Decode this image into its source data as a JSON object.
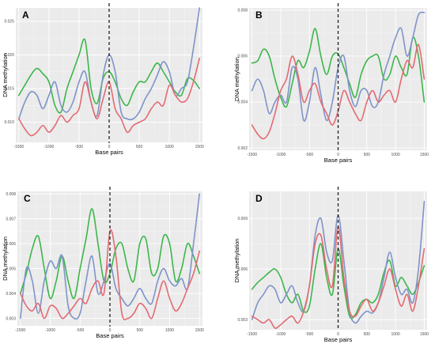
{
  "chart_data": [
    {
      "type": "line",
      "panel_label": "A",
      "xlabel": "Base pairs",
      "ylabel": "DNA methylation",
      "xlim": [
        -1550,
        1550
      ],
      "ylim": [
        0.007,
        0.027
      ],
      "x_ticks": [
        -1500,
        -1000,
        -500,
        0,
        500,
        1000,
        1500
      ],
      "x_tick_labels": [
        "-1500",
        "-1000",
        "-500",
        "0",
        "500",
        "1000",
        "1500"
      ],
      "y_ticks": [
        0.01,
        0.015,
        0.02,
        0.025
      ],
      "y_tick_labels": [
        "0.010",
        "0.015",
        "0.020",
        "0.025"
      ],
      "vline_x": 0,
      "series": [
        {
          "color": "#3cb64a",
          "x": [
            -1500,
            -1400,
            -1300,
            -1200,
            -1100,
            -1000,
            -900,
            -800,
            -700,
            -600,
            -500,
            -400,
            -300,
            -200,
            -100,
            0,
            100,
            200,
            300,
            400,
            500,
            600,
            700,
            800,
            900,
            1000,
            1100,
            1200,
            1300,
            1400,
            1500
          ],
          "values": [
            0.014,
            0.0155,
            0.017,
            0.018,
            0.0172,
            0.016,
            0.0125,
            0.0115,
            0.015,
            0.0175,
            0.02,
            0.0222,
            0.015,
            0.0128,
            0.0165,
            0.0175,
            0.016,
            0.0135,
            0.0125,
            0.0145,
            0.016,
            0.016,
            0.0175,
            0.0188,
            0.0175,
            0.016,
            0.0145,
            0.014,
            0.0165,
            0.0162,
            0.015
          ]
        },
        {
          "color": "#7e93c9",
          "x": [
            -1500,
            -1400,
            -1300,
            -1200,
            -1100,
            -1000,
            -900,
            -800,
            -700,
            -600,
            -500,
            -400,
            -300,
            -200,
            -100,
            0,
            100,
            200,
            300,
            400,
            500,
            600,
            700,
            800,
            900,
            1000,
            1100,
            1200,
            1300,
            1400,
            1500
          ],
          "values": [
            0.0105,
            0.013,
            0.0145,
            0.014,
            0.012,
            0.014,
            0.016,
            0.0125,
            0.0115,
            0.013,
            0.016,
            0.0175,
            0.013,
            0.011,
            0.017,
            0.02,
            0.0175,
            0.0115,
            0.0105,
            0.0105,
            0.0115,
            0.0135,
            0.015,
            0.017,
            0.019,
            0.0175,
            0.014,
            0.015,
            0.016,
            0.021,
            0.027
          ]
        },
        {
          "color": "#e46a72",
          "x": [
            -1500,
            -1400,
            -1300,
            -1200,
            -1100,
            -1000,
            -900,
            -800,
            -700,
            -600,
            -500,
            -400,
            -300,
            -200,
            -100,
            0,
            100,
            200,
            300,
            400,
            500,
            600,
            700,
            800,
            900,
            1000,
            1100,
            1200,
            1300,
            1400,
            1500
          ],
          "values": [
            0.0105,
            0.009,
            0.008,
            0.0085,
            0.0095,
            0.0085,
            0.0095,
            0.011,
            0.01,
            0.011,
            0.012,
            0.016,
            0.013,
            0.0105,
            0.0135,
            0.016,
            0.012,
            0.0105,
            0.0085,
            0.0095,
            0.01,
            0.0105,
            0.012,
            0.013,
            0.0125,
            0.0155,
            0.014,
            0.013,
            0.0135,
            0.016,
            0.0195
          ]
        }
      ]
    },
    {
      "type": "line",
      "panel_label": "B",
      "xlabel": "Base pairs",
      "ylabel": "DNA methylation",
      "xlim": [
        -1550,
        1550
      ],
      "ylim": [
        0.0019,
        0.0081
      ],
      "x_ticks": [
        -1500,
        -1000,
        -500,
        0,
        500,
        1000,
        1500
      ],
      "x_tick_labels": [
        "-1500",
        "-1000",
        "-500",
        "0",
        "500",
        "1000",
        "1500"
      ],
      "y_ticks": [
        0.002,
        0.004,
        0.006,
        0.008
      ],
      "y_tick_labels": [
        "0.002",
        "0.004",
        "0.006",
        "0.008"
      ],
      "vline_x": 0,
      "series": [
        {
          "color": "#3cb64a",
          "x": [
            -1500,
            -1400,
            -1300,
            -1200,
            -1100,
            -1000,
            -900,
            -800,
            -700,
            -600,
            -500,
            -400,
            -300,
            -200,
            -100,
            0,
            100,
            200,
            300,
            400,
            500,
            600,
            700,
            800,
            900,
            1000,
            1100,
            1200,
            1300,
            1400,
            1500
          ],
          "values": [
            0.0057,
            0.0058,
            0.0063,
            0.006,
            0.005,
            0.0042,
            0.0038,
            0.0048,
            0.0058,
            0.0055,
            0.0062,
            0.0072,
            0.006,
            0.0052,
            0.006,
            0.0061,
            0.0055,
            0.0048,
            0.0042,
            0.0052,
            0.0058,
            0.006,
            0.006,
            0.005,
            0.0052,
            0.006,
            0.0055,
            0.0052,
            0.0068,
            0.006,
            0.004
          ]
        },
        {
          "color": "#7e93c9",
          "x": [
            -1500,
            -1400,
            -1300,
            -1200,
            -1100,
            -1000,
            -900,
            -800,
            -700,
            -600,
            -500,
            -400,
            -300,
            -200,
            -100,
            0,
            100,
            200,
            300,
            400,
            500,
            600,
            700,
            800,
            900,
            1000,
            1100,
            1200,
            1300,
            1400,
            1500
          ],
          "values": [
            0.0045,
            0.005,
            0.0045,
            0.0035,
            0.004,
            0.0043,
            0.004,
            0.0055,
            0.005,
            0.0032,
            0.004,
            0.0055,
            0.0043,
            0.0032,
            0.004,
            0.0055,
            0.006,
            0.0045,
            0.0038,
            0.0045,
            0.0045,
            0.0038,
            0.004,
            0.0052,
            0.006,
            0.0068,
            0.0072,
            0.006,
            0.0068,
            0.0078,
            0.0079
          ]
        },
        {
          "color": "#e46a72",
          "x": [
            -1500,
            -1400,
            -1300,
            -1200,
            -1100,
            -1000,
            -900,
            -800,
            -700,
            -600,
            -500,
            -400,
            -300,
            -200,
            -100,
            0,
            100,
            200,
            300,
            400,
            500,
            600,
            700,
            800,
            900,
            1000,
            1100,
            1200,
            1300,
            1400,
            1500
          ],
          "values": [
            0.003,
            0.0026,
            0.0024,
            0.0027,
            0.0035,
            0.0045,
            0.005,
            0.006,
            0.0052,
            0.004,
            0.0045,
            0.0048,
            0.004,
            0.0035,
            0.003,
            0.0036,
            0.0045,
            0.004,
            0.0035,
            0.0032,
            0.004,
            0.0045,
            0.004,
            0.0043,
            0.0045,
            0.004,
            0.005,
            0.0058,
            0.0055,
            0.0065,
            0.005
          ]
        }
      ]
    },
    {
      "type": "line",
      "panel_label": "C",
      "xlabel": "Base pairs",
      "ylabel": "DNA methylation",
      "xlim": [
        -1550,
        1550
      ],
      "ylim": [
        0.0027,
        0.0081
      ],
      "x_ticks": [
        -1500,
        -1000,
        -500,
        0,
        500,
        1000,
        1500
      ],
      "x_tick_labels": [
        "-1500",
        "-1000",
        "-500",
        "0",
        "500",
        "1000",
        "1500"
      ],
      "y_ticks": [
        0.003,
        0.004,
        0.005,
        0.006,
        0.007,
        0.008
      ],
      "y_tick_labels": [
        "0.003",
        "0.004",
        "0.005",
        "0.006",
        "0.007",
        "0.008"
      ],
      "vline_x": 0,
      "series": [
        {
          "color": "#3cb64a",
          "x": [
            -1500,
            -1400,
            -1300,
            -1200,
            -1100,
            -1000,
            -900,
            -800,
            -700,
            -600,
            -500,
            -400,
            -300,
            -200,
            -100,
            0,
            100,
            200,
            300,
            400,
            500,
            600,
            700,
            800,
            900,
            1000,
            1100,
            1200,
            1300,
            1400,
            1500
          ],
          "values": [
            0.004,
            0.0048,
            0.0058,
            0.0063,
            0.005,
            0.0038,
            0.0045,
            0.0055,
            0.0045,
            0.0038,
            0.005,
            0.0062,
            0.0074,
            0.006,
            0.0045,
            0.0048,
            0.0058,
            0.006,
            0.005,
            0.0045,
            0.006,
            0.0062,
            0.0048,
            0.005,
            0.0063,
            0.006,
            0.0045,
            0.005,
            0.006,
            0.0055,
            0.0048
          ]
        },
        {
          "color": "#7e93c9",
          "x": [
            -1500,
            -1400,
            -1300,
            -1200,
            -1100,
            -1000,
            -900,
            -800,
            -700,
            -600,
            -500,
            -400,
            -300,
            -200,
            -100,
            0,
            100,
            200,
            300,
            400,
            500,
            600,
            700,
            800,
            900,
            1000,
            1100,
            1200,
            1300,
            1400,
            1500
          ],
          "values": [
            0.003,
            0.005,
            0.0045,
            0.0032,
            0.0045,
            0.0053,
            0.005,
            0.0055,
            0.0035,
            0.003,
            0.0032,
            0.0045,
            0.0055,
            0.004,
            0.0045,
            0.0052,
            0.0042,
            0.0038,
            0.0035,
            0.0038,
            0.0042,
            0.0038,
            0.0036,
            0.0045,
            0.005,
            0.0045,
            0.0043,
            0.0046,
            0.0042,
            0.006,
            0.008
          ]
        },
        {
          "color": "#e46a72",
          "x": [
            -1500,
            -1400,
            -1300,
            -1200,
            -1100,
            -1000,
            -900,
            -800,
            -700,
            -600,
            -500,
            -400,
            -300,
            -200,
            -100,
            0,
            100,
            200,
            300,
            400,
            500,
            600,
            700,
            800,
            900,
            1000,
            1100,
            1200,
            1300,
            1400,
            1500
          ],
          "values": [
            0.004,
            0.0035,
            0.0033,
            0.0036,
            0.003,
            0.0035,
            0.0034,
            0.003,
            0.0032,
            0.0035,
            0.0038,
            0.0036,
            0.0042,
            0.0045,
            0.004,
            0.0065,
            0.0055,
            0.0032,
            0.003,
            0.0032,
            0.0036,
            0.0034,
            0.003,
            0.0038,
            0.0045,
            0.0038,
            0.0033,
            0.0036,
            0.0042,
            0.0048,
            0.0057
          ]
        }
      ]
    },
    {
      "type": "line",
      "panel_label": "D",
      "xlabel": "Base pairs",
      "ylabel": "DNA methylation",
      "xlim": [
        -1550,
        1550
      ],
      "ylim": [
        0.0024,
        0.0106
      ],
      "x_ticks": [
        -1500,
        -1000,
        -500,
        0,
        500,
        1000,
        1500
      ],
      "x_tick_labels": [
        "-1500",
        "-1000",
        "-500",
        "0",
        "500",
        "1000",
        "1500"
      ],
      "y_ticks": [
        0.003,
        0.006,
        0.009
      ],
      "y_tick_labels": [
        "0.003",
        "0.006",
        "0.009"
      ],
      "vline_x": 0,
      "series": [
        {
          "color": "#3cb64a",
          "x": [
            -1500,
            -1400,
            -1300,
            -1200,
            -1100,
            -1000,
            -900,
            -800,
            -700,
            -600,
            -500,
            -400,
            -300,
            -200,
            -100,
            0,
            100,
            200,
            300,
            400,
            500,
            600,
            700,
            800,
            900,
            1000,
            1100,
            1200,
            1300,
            1400,
            1500
          ],
          "values": [
            0.0048,
            0.0052,
            0.0055,
            0.0058,
            0.006,
            0.0055,
            0.0045,
            0.004,
            0.0045,
            0.0035,
            0.0038,
            0.006,
            0.0075,
            0.0055,
            0.0045,
            0.0072,
            0.005,
            0.0032,
            0.0033,
            0.004,
            0.0042,
            0.004,
            0.0045,
            0.0058,
            0.0065,
            0.005,
            0.0055,
            0.005,
            0.0045,
            0.0052,
            0.0062
          ]
        },
        {
          "color": "#7e93c9",
          "x": [
            -1500,
            -1400,
            -1300,
            -1200,
            -1100,
            -1000,
            -900,
            -800,
            -700,
            -600,
            -500,
            -400,
            -300,
            -200,
            -100,
            0,
            100,
            200,
            300,
            400,
            500,
            600,
            700,
            800,
            900,
            1000,
            1100,
            1200,
            1300,
            1400,
            1500
          ],
          "values": [
            0.003,
            0.004,
            0.0045,
            0.005,
            0.0048,
            0.004,
            0.0045,
            0.005,
            0.004,
            0.0035,
            0.005,
            0.008,
            0.009,
            0.007,
            0.0065,
            0.0092,
            0.0065,
            0.0035,
            0.0028,
            0.0032,
            0.0035,
            0.0034,
            0.004,
            0.0055,
            0.007,
            0.0055,
            0.0045,
            0.0048,
            0.004,
            0.006,
            0.01
          ]
        },
        {
          "color": "#e46a72",
          "x": [
            -1500,
            -1400,
            -1300,
            -1200,
            -1100,
            -1000,
            -900,
            -800,
            -700,
            -600,
            -500,
            -400,
            -300,
            -200,
            -100,
            0,
            100,
            200,
            300,
            400,
            500,
            600,
            700,
            800,
            900,
            1000,
            1100,
            1200,
            1300,
            1400,
            1500
          ],
          "values": [
            0.0032,
            0.003,
            0.0028,
            0.003,
            0.0025,
            0.0027,
            0.003,
            0.0032,
            0.0028,
            0.0035,
            0.005,
            0.0075,
            0.008,
            0.006,
            0.005,
            0.0085,
            0.0055,
            0.0035,
            0.0032,
            0.0038,
            0.0042,
            0.0035,
            0.004,
            0.005,
            0.006,
            0.0048,
            0.0038,
            0.0045,
            0.0035,
            0.005,
            0.0072
          ]
        }
      ]
    }
  ]
}
